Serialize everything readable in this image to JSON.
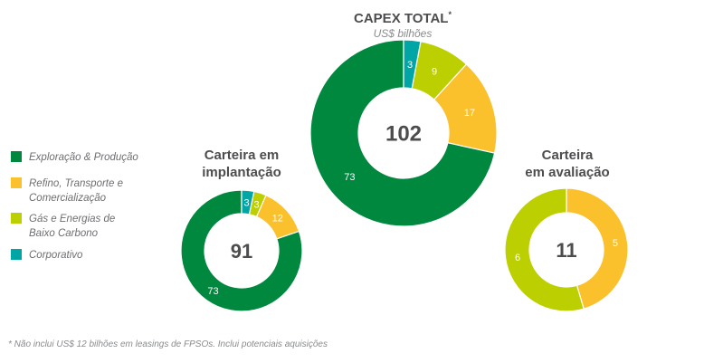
{
  "colors": {
    "exploracao": "#00883e",
    "refino": "#fbc12d",
    "gas": "#bccf00",
    "corporativo": "#00a6a6",
    "center_text": "#4d4d4f"
  },
  "legend": [
    {
      "key": "exploracao",
      "label": "Exploração & Produção"
    },
    {
      "key": "refino",
      "label": "Refino, Transporte e\nComercialização"
    },
    {
      "key": "gas",
      "label": "Gás e Energias de\nBaixo Carbono"
    },
    {
      "key": "corporativo",
      "label": "Corporativo"
    }
  ],
  "titles": {
    "total_title": "CAPEX TOTAL",
    "total_asterisk": "*",
    "total_subtitle": "US$ bilhões",
    "implantacao_title": "Carteira em\nimplantação",
    "avaliacao_title": "Carteira\nem avaliação"
  },
  "footnote": "* Não inclui US$ 12 bilhões em leasings de FPSOs. Inclui potenciais aquisições",
  "chart_data": [
    {
      "type": "pie",
      "id": "capex-total",
      "title": "CAPEX TOTAL",
      "subtitle": "US$ bilhões",
      "center_label": "102",
      "slices": [
        {
          "key": "exploracao",
          "value": 73
        },
        {
          "key": "refino",
          "value": 17
        },
        {
          "key": "gas",
          "value": 9
        },
        {
          "key": "corporativo",
          "value": 3
        }
      ]
    },
    {
      "type": "pie",
      "id": "carteira-implantacao",
      "title": "Carteira em implantação",
      "center_label": "91",
      "slices": [
        {
          "key": "exploracao",
          "value": 73
        },
        {
          "key": "refino",
          "value": 12
        },
        {
          "key": "gas",
          "value": 3
        },
        {
          "key": "corporativo",
          "value": 3
        }
      ]
    },
    {
      "type": "pie",
      "id": "carteira-avaliacao",
      "title": "Carteira em avaliação",
      "center_label": "11",
      "slices": [
        {
          "key": "refino",
          "value": 5
        },
        {
          "key": "gas",
          "value": 6
        }
      ]
    }
  ]
}
